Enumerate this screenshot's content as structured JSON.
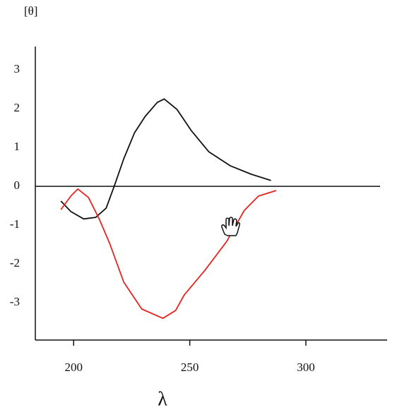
{
  "chart_data": {
    "type": "line",
    "y_label": "[θ]",
    "x_label": "λ",
    "xlim": [
      183.5,
      335
    ],
    "xticks": [
      200,
      250,
      300
    ],
    "ylim": [
      -3.96,
      3.6
    ],
    "yticks": [
      3,
      2,
      1,
      0,
      -1,
      -2,
      -3
    ],
    "series": [
      {
        "color": "#111111",
        "x": [
          194.5,
          198.8,
          204.3,
          209.5,
          214,
          217.7,
          221.6,
          226.2,
          230.8,
          236,
          239,
          244.5,
          250.6,
          258.2,
          267.4,
          276.5,
          285
        ],
        "values": [
          -0.38,
          -0.65,
          -0.84,
          -0.8,
          -0.56,
          0.04,
          0.71,
          1.38,
          1.8,
          2.16,
          2.25,
          1.98,
          1.44,
          0.89,
          0.53,
          0.31,
          0.15
        ]
      },
      {
        "color": "#e8231f",
        "x": [
          194.5,
          198.8,
          201.8,
          206.4,
          211,
          215.5,
          221.6,
          229.3,
          238.4,
          243.9,
          247.6,
          256.7,
          265.9,
          273.5,
          279.6,
          287.2
        ],
        "values": [
          -0.6,
          -0.25,
          -0.07,
          -0.29,
          -0.84,
          -1.47,
          -2.47,
          -3.16,
          -3.4,
          -3.2,
          -2.8,
          -2.15,
          -1.42,
          -0.62,
          -0.25,
          -0.11
        ]
      }
    ]
  }
}
